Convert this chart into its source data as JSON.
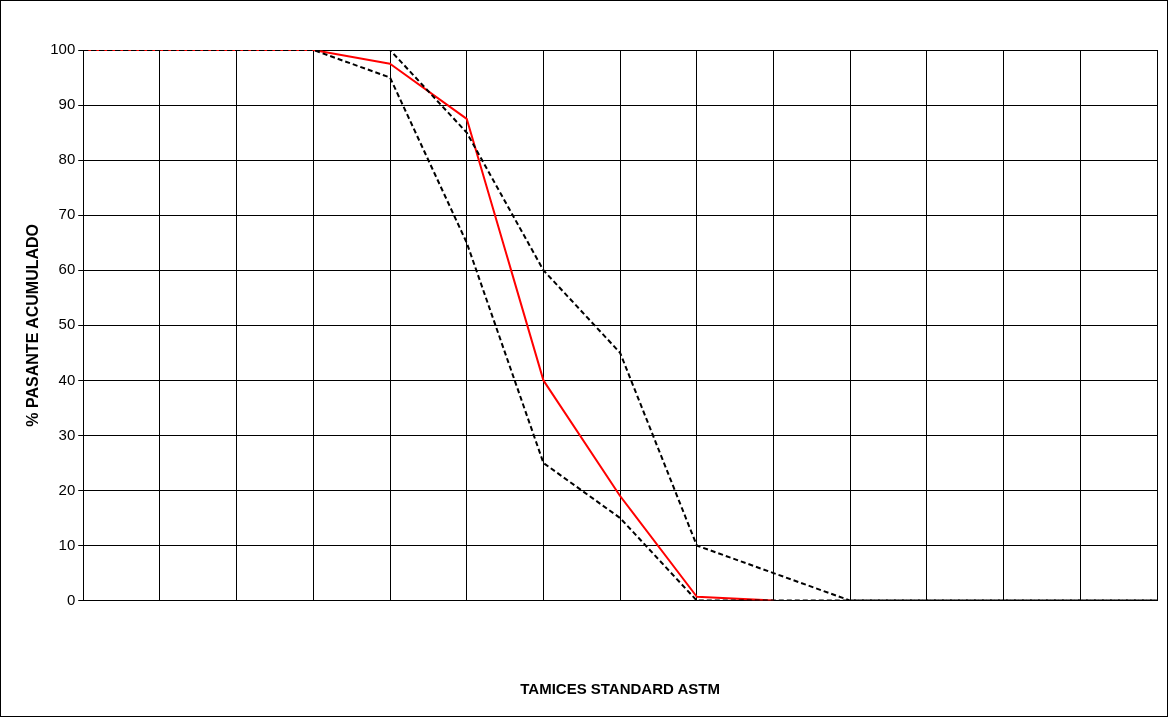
{
  "chart_data": {
    "type": "line",
    "xlabel": "TAMICES STANDARD ASTM",
    "ylabel": "% PASANTE ACUMULADO",
    "categories": [
      null,
      null,
      null,
      null,
      null,
      null,
      null,
      null,
      null,
      null,
      null,
      null,
      null,
      null,
      null
    ],
    "series": [
      {
        "color": "#000000",
        "line_style": "dashed",
        "values": [
          100,
          100,
          100,
          100,
          95,
          65,
          25,
          15,
          0,
          0,
          0,
          0,
          0,
          0,
          0
        ]
      },
      {
        "color": "#000000",
        "line_style": "dashed",
        "values": [
          100,
          100,
          100,
          100,
          100,
          85,
          60,
          45,
          10,
          5,
          0,
          0,
          0,
          0,
          0
        ]
      },
      {
        "color": "#ff0000",
        "line_style": "solid",
        "values": [
          100,
          100,
          100,
          100,
          97.5,
          87.5,
          40,
          19,
          0.7,
          0,
          null,
          null,
          null,
          null,
          null
        ]
      }
    ],
    "ylim": [
      0,
      100
    ],
    "yticks": [
      0,
      10,
      20,
      30,
      40,
      50,
      60,
      70,
      80,
      90,
      100
    ],
    "grid": true,
    "legend": false,
    "marker": "none"
  }
}
